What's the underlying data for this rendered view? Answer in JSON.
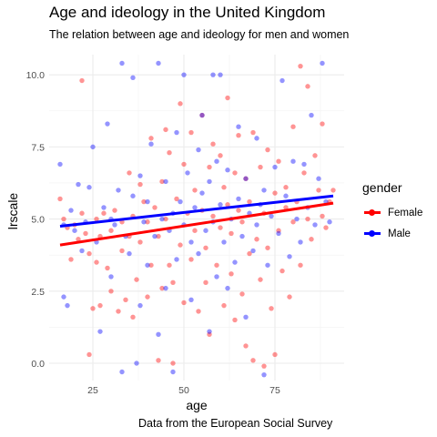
{
  "header": {
    "title": "Age and ideology in the United Kingdom",
    "subtitle": "The relation between age and ideology for men and women"
  },
  "caption": "Data from the European Social Survey",
  "legend": {
    "title": "gender",
    "items": [
      {
        "label": "Female",
        "color": "#ff0000"
      },
      {
        "label": "Male",
        "color": "#0000ff"
      }
    ]
  },
  "chart_data": {
    "type": "scatter",
    "xlabel": "age",
    "ylabel": "lrscale",
    "xlim": [
      13,
      94
    ],
    "ylim": [
      -0.6,
      10.7
    ],
    "xticks": [
      25,
      50,
      75
    ],
    "xtick_labels": [
      "25",
      "50",
      "75"
    ],
    "yticks": [
      0,
      2.5,
      5,
      7.5,
      10
    ],
    "ytick_labels": [
      "0.0",
      "2.5",
      "5.0",
      "7.5",
      "10.0"
    ],
    "grid": true,
    "legend_position": "right",
    "series": [
      {
        "name": "Female",
        "color": "#ff0000",
        "fit_line": {
          "x": [
            16,
            91
          ],
          "y": [
            4.1,
            5.55
          ]
        },
        "points": [
          [
            16,
            5.7
          ],
          [
            17,
            5.0
          ],
          [
            18,
            4.7
          ],
          [
            19,
            3.6
          ],
          [
            20,
            4.8
          ],
          [
            21,
            4.3
          ],
          [
            22,
            9.8
          ],
          [
            22,
            5.2
          ],
          [
            23,
            4.5
          ],
          [
            24,
            3.8
          ],
          [
            24,
            0.3
          ],
          [
            25,
            1.9
          ],
          [
            26,
            5.0
          ],
          [
            26,
            3.5
          ],
          [
            27,
            2.0
          ],
          [
            27,
            4.4
          ],
          [
            28,
            5.2
          ],
          [
            29,
            3.3
          ],
          [
            30,
            4.6
          ],
          [
            30,
            2.5
          ],
          [
            31,
            5.3
          ],
          [
            32,
            1.8
          ],
          [
            33,
            3.9
          ],
          [
            33,
            4.9
          ],
          [
            34,
            2.2
          ],
          [
            35,
            4.4
          ],
          [
            35,
            6.6
          ],
          [
            36,
            5.1
          ],
          [
            36,
            1.6
          ],
          [
            37,
            2.9
          ],
          [
            38,
            6.2
          ],
          [
            38,
            4.2
          ],
          [
            39,
            5.6
          ],
          [
            40,
            2.3
          ],
          [
            40,
            4.9
          ],
          [
            41,
            7.8
          ],
          [
            41,
            3.4
          ],
          [
            42,
            5.4
          ],
          [
            43,
            0.1
          ],
          [
            43,
            4.4
          ],
          [
            44,
            6.3
          ],
          [
            44,
            2.6
          ],
          [
            45,
            8.1
          ],
          [
            45,
            5.0
          ],
          [
            46,
            3.4
          ],
          [
            46,
            7.3
          ],
          [
            47,
            2.8
          ],
          [
            47,
            0.0
          ],
          [
            48,
            5.7
          ],
          [
            49,
            4.1
          ],
          [
            49,
            9.0
          ],
          [
            50,
            6.9
          ],
          [
            50,
            2.1
          ],
          [
            51,
            5.2
          ],
          [
            52,
            3.6
          ],
          [
            52,
            8.0
          ],
          [
            53,
            4.6
          ],
          [
            53,
            6.0
          ],
          [
            54,
            1.8
          ],
          [
            55,
            5.3
          ],
          [
            55,
            8.6
          ],
          [
            56,
            2.8
          ],
          [
            56,
            4.0
          ],
          [
            57,
            6.8
          ],
          [
            57,
            1.0
          ],
          [
            58,
            7.6
          ],
          [
            58,
            5.1
          ],
          [
            59,
            3.4
          ],
          [
            60,
            7.2
          ],
          [
            60,
            4.7
          ],
          [
            61,
            2.0
          ],
          [
            61,
            6.1
          ],
          [
            62,
            5.5
          ],
          [
            62,
            9.2
          ],
          [
            63,
            3.1
          ],
          [
            63,
            4.5
          ],
          [
            64,
            6.6
          ],
          [
            64,
            1.5
          ],
          [
            65,
            5.3
          ],
          [
            65,
            7.9
          ],
          [
            66,
            2.4
          ],
          [
            66,
            4.9
          ],
          [
            67,
            0.6
          ],
          [
            67,
            6.4
          ],
          [
            68,
            3.8
          ],
          [
            68,
            5.6
          ],
          [
            69,
            8.0
          ],
          [
            69,
            0.1
          ],
          [
            70,
            4.3
          ],
          [
            71,
            6.8
          ],
          [
            71,
            2.9
          ],
          [
            72,
            5.2
          ],
          [
            72,
            -0.1
          ],
          [
            73,
            7.4
          ],
          [
            73,
            4.0
          ],
          [
            74,
            1.9
          ],
          [
            75,
            5.9
          ],
          [
            75,
            0.3
          ],
          [
            76,
            4.6
          ],
          [
            76,
            7.0
          ],
          [
            77,
            3.2
          ],
          [
            78,
            5.4
          ],
          [
            78,
            6.1
          ],
          [
            79,
            2.3
          ],
          [
            80,
            4.9
          ],
          [
            80,
            8.2
          ],
          [
            81,
            5.6
          ],
          [
            82,
            10.3
          ],
          [
            82,
            3.4
          ],
          [
            83,
            6.6
          ],
          [
            84,
            9.6
          ],
          [
            84,
            5.0
          ],
          [
            85,
            4.3
          ],
          [
            86,
            7.2
          ],
          [
            87,
            6.0
          ],
          [
            88,
            8.3
          ],
          [
            88,
            5.1
          ],
          [
            89,
            4.7
          ],
          [
            90,
            5.6
          ],
          [
            91,
            6.0
          ]
        ]
      },
      {
        "name": "Male",
        "color": "#0000ff",
        "fit_line": {
          "x": [
            16,
            91
          ],
          "y": [
            4.75,
            5.8
          ]
        },
        "points": [
          [
            16,
            6.9
          ],
          [
            17,
            2.3
          ],
          [
            17,
            4.8
          ],
          [
            18,
            2.0
          ],
          [
            19,
            5.3
          ],
          [
            20,
            4.6
          ],
          [
            21,
            6.2
          ],
          [
            22,
            3.9
          ],
          [
            23,
            4.9
          ],
          [
            24,
            6.1
          ],
          [
            25,
            7.5
          ],
          [
            26,
            4.2
          ],
          [
            27,
            1.1
          ],
          [
            28,
            5.4
          ],
          [
            29,
            8.3
          ],
          [
            30,
            3.0
          ],
          [
            30,
            5.0
          ],
          [
            31,
            4.8
          ],
          [
            32,
            6.0
          ],
          [
            33,
            -0.3
          ],
          [
            33,
            10.4
          ],
          [
            34,
            4.4
          ],
          [
            35,
            3.8
          ],
          [
            36,
            5.8
          ],
          [
            36,
            9.9
          ],
          [
            37,
            0.0
          ],
          [
            38,
            6.5
          ],
          [
            38,
            2.0
          ],
          [
            39,
            4.9
          ],
          [
            40,
            5.6
          ],
          [
            40,
            3.4
          ],
          [
            41,
            7.6
          ],
          [
            42,
            4.4
          ],
          [
            43,
            10.4
          ],
          [
            43,
            1.0
          ],
          [
            44,
            5.0
          ],
          [
            45,
            6.3
          ],
          [
            45,
            2.6
          ],
          [
            46,
            4.6
          ],
          [
            47,
            -0.3
          ],
          [
            47,
            5.2
          ],
          [
            48,
            8.0
          ],
          [
            48,
            3.6
          ],
          [
            49,
            5.6
          ],
          [
            50,
            4.8
          ],
          [
            50,
            10.0
          ],
          [
            51,
            6.6
          ],
          [
            52,
            2.2
          ],
          [
            52,
            4.2
          ],
          [
            53,
            5.4
          ],
          [
            54,
            7.4
          ],
          [
            54,
            3.8
          ],
          [
            55,
            5.9
          ],
          [
            55,
            8.6
          ],
          [
            56,
            4.6
          ],
          [
            57,
            1.1
          ],
          [
            57,
            6.3
          ],
          [
            58,
            10.0
          ],
          [
            58,
            4.9
          ],
          [
            59,
            3.0
          ],
          [
            59,
            7.0
          ],
          [
            60,
            5.5
          ],
          [
            60,
            10.0
          ],
          [
            61,
            4.2
          ],
          [
            62,
            6.7
          ],
          [
            62,
            2.6
          ],
          [
            63,
            5.0
          ],
          [
            64,
            3.5
          ],
          [
            65,
            8.2
          ],
          [
            65,
            5.7
          ],
          [
            66,
            4.4
          ],
          [
            67,
            1.6
          ],
          [
            67,
            6.4
          ],
          [
            68,
            5.2
          ],
          [
            69,
            3.9
          ],
          [
            70,
            7.8
          ],
          [
            70,
            4.8
          ],
          [
            71,
            5.5
          ],
          [
            72,
            -0.4
          ],
          [
            72,
            6.0
          ],
          [
            73,
            3.4
          ],
          [
            74,
            5.1
          ],
          [
            75,
            6.8
          ],
          [
            76,
            4.5
          ],
          [
            77,
            9.8
          ],
          [
            78,
            5.8
          ],
          [
            79,
            3.7
          ],
          [
            80,
            7.0
          ],
          [
            81,
            5.0
          ],
          [
            82,
            4.2
          ],
          [
            83,
            6.9
          ],
          [
            84,
            5.4
          ],
          [
            85,
            8.6
          ],
          [
            86,
            4.8
          ],
          [
            87,
            6.4
          ],
          [
            88,
            10.4
          ],
          [
            89,
            5.6
          ],
          [
            90,
            4.9
          ]
        ]
      }
    ]
  }
}
